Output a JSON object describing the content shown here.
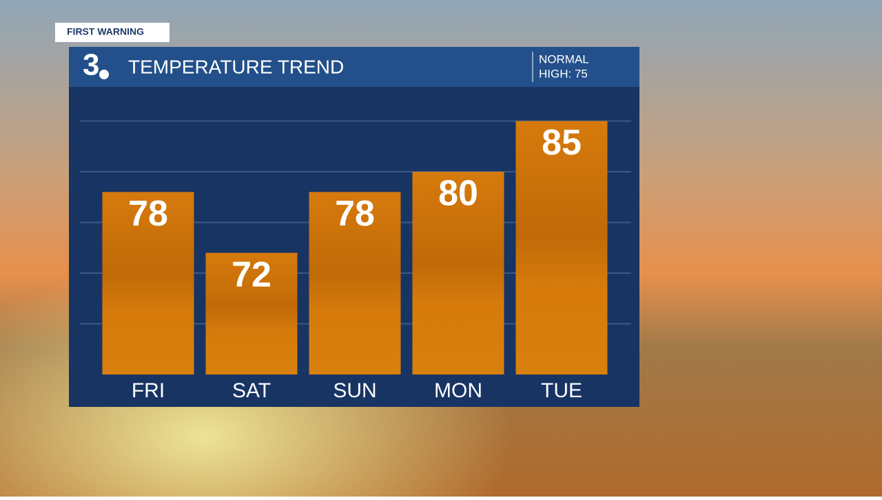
{
  "badge": "FIRST WARNING",
  "logo": "3",
  "chart_data": {
    "type": "bar",
    "title": "TEMPERATURE TREND",
    "annotations": [
      "NORMAL",
      "HIGH: 75"
    ],
    "categories": [
      "FRI",
      "SAT",
      "SUN",
      "MON",
      "TUE"
    ],
    "values": [
      78,
      72,
      78,
      80,
      85
    ],
    "color": "#d67a0c",
    "ylim": [
      60,
      90
    ],
    "yticks": [
      65,
      70,
      75,
      80,
      85
    ],
    "grid": true
  }
}
